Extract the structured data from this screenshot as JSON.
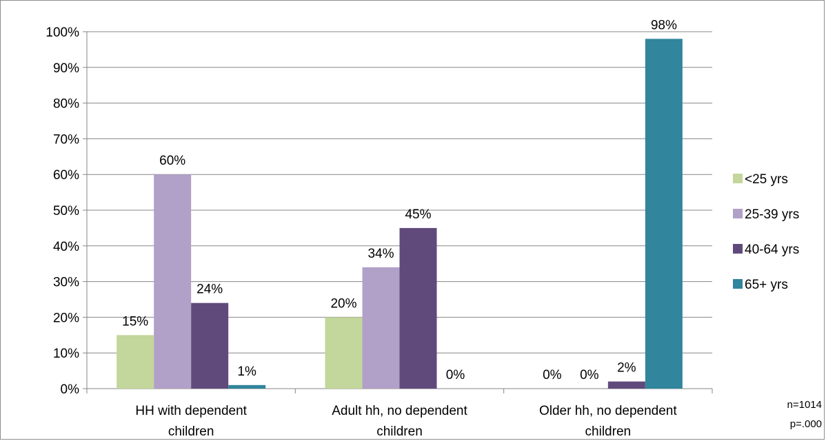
{
  "chart_data": {
    "type": "bar",
    "categories": [
      [
        "HH with dependent",
        "children"
      ],
      [
        "Adult hh, no dependent",
        "children"
      ],
      [
        "Older hh, no dependent",
        "children"
      ]
    ],
    "series": [
      {
        "name": "<25 yrs",
        "color": "#c3d69b",
        "values": [
          15,
          20,
          0
        ],
        "labels": [
          "15%",
          "20%",
          "0%"
        ]
      },
      {
        "name": "25-39 yrs",
        "color": "#b1a0c7",
        "values": [
          60,
          34,
          0
        ],
        "labels": [
          "60%",
          "34%",
          "0%"
        ]
      },
      {
        "name": "40-64 yrs",
        "color": "#604a7b",
        "values": [
          24,
          45,
          2
        ],
        "labels": [
          "24%",
          "45%",
          "2%"
        ]
      },
      {
        "name": "65+ yrs",
        "color": "#31859c",
        "values": [
          1,
          0,
          98
        ],
        "labels": [
          "1%",
          "0%",
          "98%"
        ]
      }
    ],
    "ylim": [
      0,
      100
    ],
    "yticks": [
      "0%",
      "10%",
      "20%",
      "30%",
      "40%",
      "50%",
      "60%",
      "70%",
      "80%",
      "90%",
      "100%"
    ],
    "grid": true,
    "legend_position": "right",
    "title": "",
    "xlabel": "",
    "ylabel": ""
  },
  "notes": {
    "n": "n=1014",
    "p": "p=.000"
  }
}
